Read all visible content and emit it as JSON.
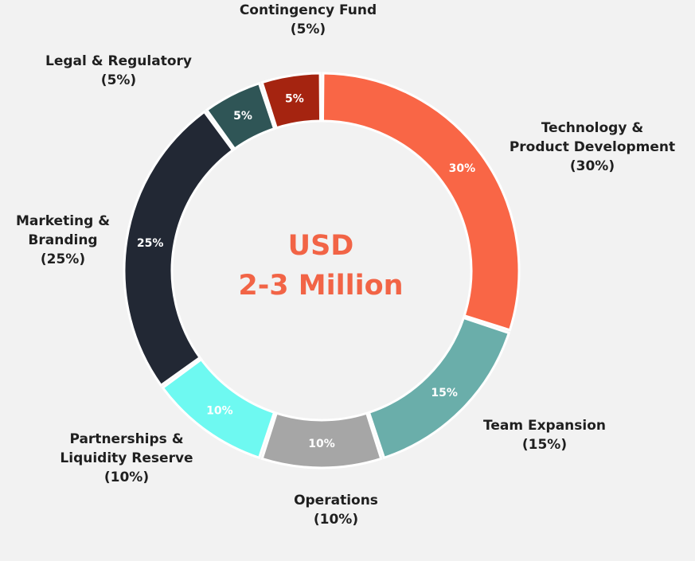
{
  "center": {
    "line1": "USD",
    "line2": "2-3 Million",
    "color": "#f26446"
  },
  "chart_data": {
    "type": "pie",
    "style": "donut",
    "total_label": "USD 2-3 Million",
    "slices": [
      {
        "id": "tech",
        "label_lines": [
          "Technology &",
          "Product Development"
        ],
        "pct_text": "(30%)",
        "inner": "30%",
        "value": 30,
        "color": "#f96646",
        "inner_text_color": "#ffffff"
      },
      {
        "id": "team",
        "label_lines": [
          "Team Expansion"
        ],
        "pct_text": "(15%)",
        "inner": "15%",
        "value": 15,
        "color": "#6aaeaa",
        "inner_text_color": "#ffffff"
      },
      {
        "id": "ops",
        "label_lines": [
          "Operations"
        ],
        "pct_text": "(10%)",
        "inner": "10%",
        "value": 10,
        "color": "#a6a6a6",
        "inner_text_color": "#ffffff"
      },
      {
        "id": "partner",
        "label_lines": [
          "Partnerships &",
          "Liquidity Reserve"
        ],
        "pct_text": "(10%)",
        "inner": "10%",
        "value": 10,
        "color": "#6ef9f1",
        "inner_text_color": "#ffffff"
      },
      {
        "id": "marketing",
        "label_lines": [
          "Marketing &",
          "Branding"
        ],
        "pct_text": "(25%)",
        "inner": "25%",
        "value": 25,
        "color": "#222834",
        "inner_text_color": "#ffffff"
      },
      {
        "id": "legal",
        "label_lines": [
          "Legal & Regulatory"
        ],
        "pct_text": "(5%)",
        "inner": "5%",
        "value": 5,
        "color": "#2f5556",
        "inner_text_color": "#ffffff"
      },
      {
        "id": "contingency",
        "label_lines": [
          "Contingency Fund"
        ],
        "pct_text": "(5%)",
        "inner": "5%",
        "value": 5,
        "color": "#a52410",
        "inner_text_color": "#ffffff"
      }
    ]
  }
}
